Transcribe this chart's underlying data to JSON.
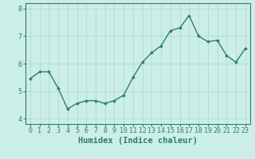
{
  "x": [
    0,
    1,
    2,
    3,
    4,
    5,
    6,
    7,
    8,
    9,
    10,
    11,
    12,
    13,
    14,
    15,
    16,
    17,
    18,
    19,
    20,
    21,
    22,
    23
  ],
  "y": [
    5.45,
    5.7,
    5.7,
    5.1,
    4.35,
    4.55,
    4.65,
    4.65,
    4.55,
    4.65,
    4.85,
    5.5,
    6.05,
    6.4,
    6.65,
    7.2,
    7.3,
    7.75,
    7.0,
    6.8,
    6.85,
    6.3,
    6.05,
    6.55
  ],
  "line_color": "#2e7d6e",
  "marker": "D",
  "marker_size": 2.0,
  "line_width": 1.0,
  "bg_color": "#cceee8",
  "grid_color": "#aad6d0",
  "xlabel": "Humidex (Indice chaleur)",
  "xlim": [
    -0.5,
    23.5
  ],
  "ylim": [
    3.8,
    8.2
  ],
  "yticks": [
    4,
    5,
    6,
    7,
    8
  ],
  "xticks": [
    0,
    1,
    2,
    3,
    4,
    5,
    6,
    7,
    8,
    9,
    10,
    11,
    12,
    13,
    14,
    15,
    16,
    17,
    18,
    19,
    20,
    21,
    22,
    23
  ],
  "xtick_labels": [
    "0",
    "1",
    "2",
    "3",
    "4",
    "5",
    "6",
    "7",
    "8",
    "9",
    "10",
    "11",
    "12",
    "13",
    "14",
    "15",
    "16",
    "17",
    "18",
    "19",
    "20",
    "21",
    "22",
    "23"
  ],
  "tick_color": "#2e7d6e",
  "axis_color": "#2e7d6e",
  "xlabel_fontsize": 7.5,
  "tick_fontsize": 6.0
}
